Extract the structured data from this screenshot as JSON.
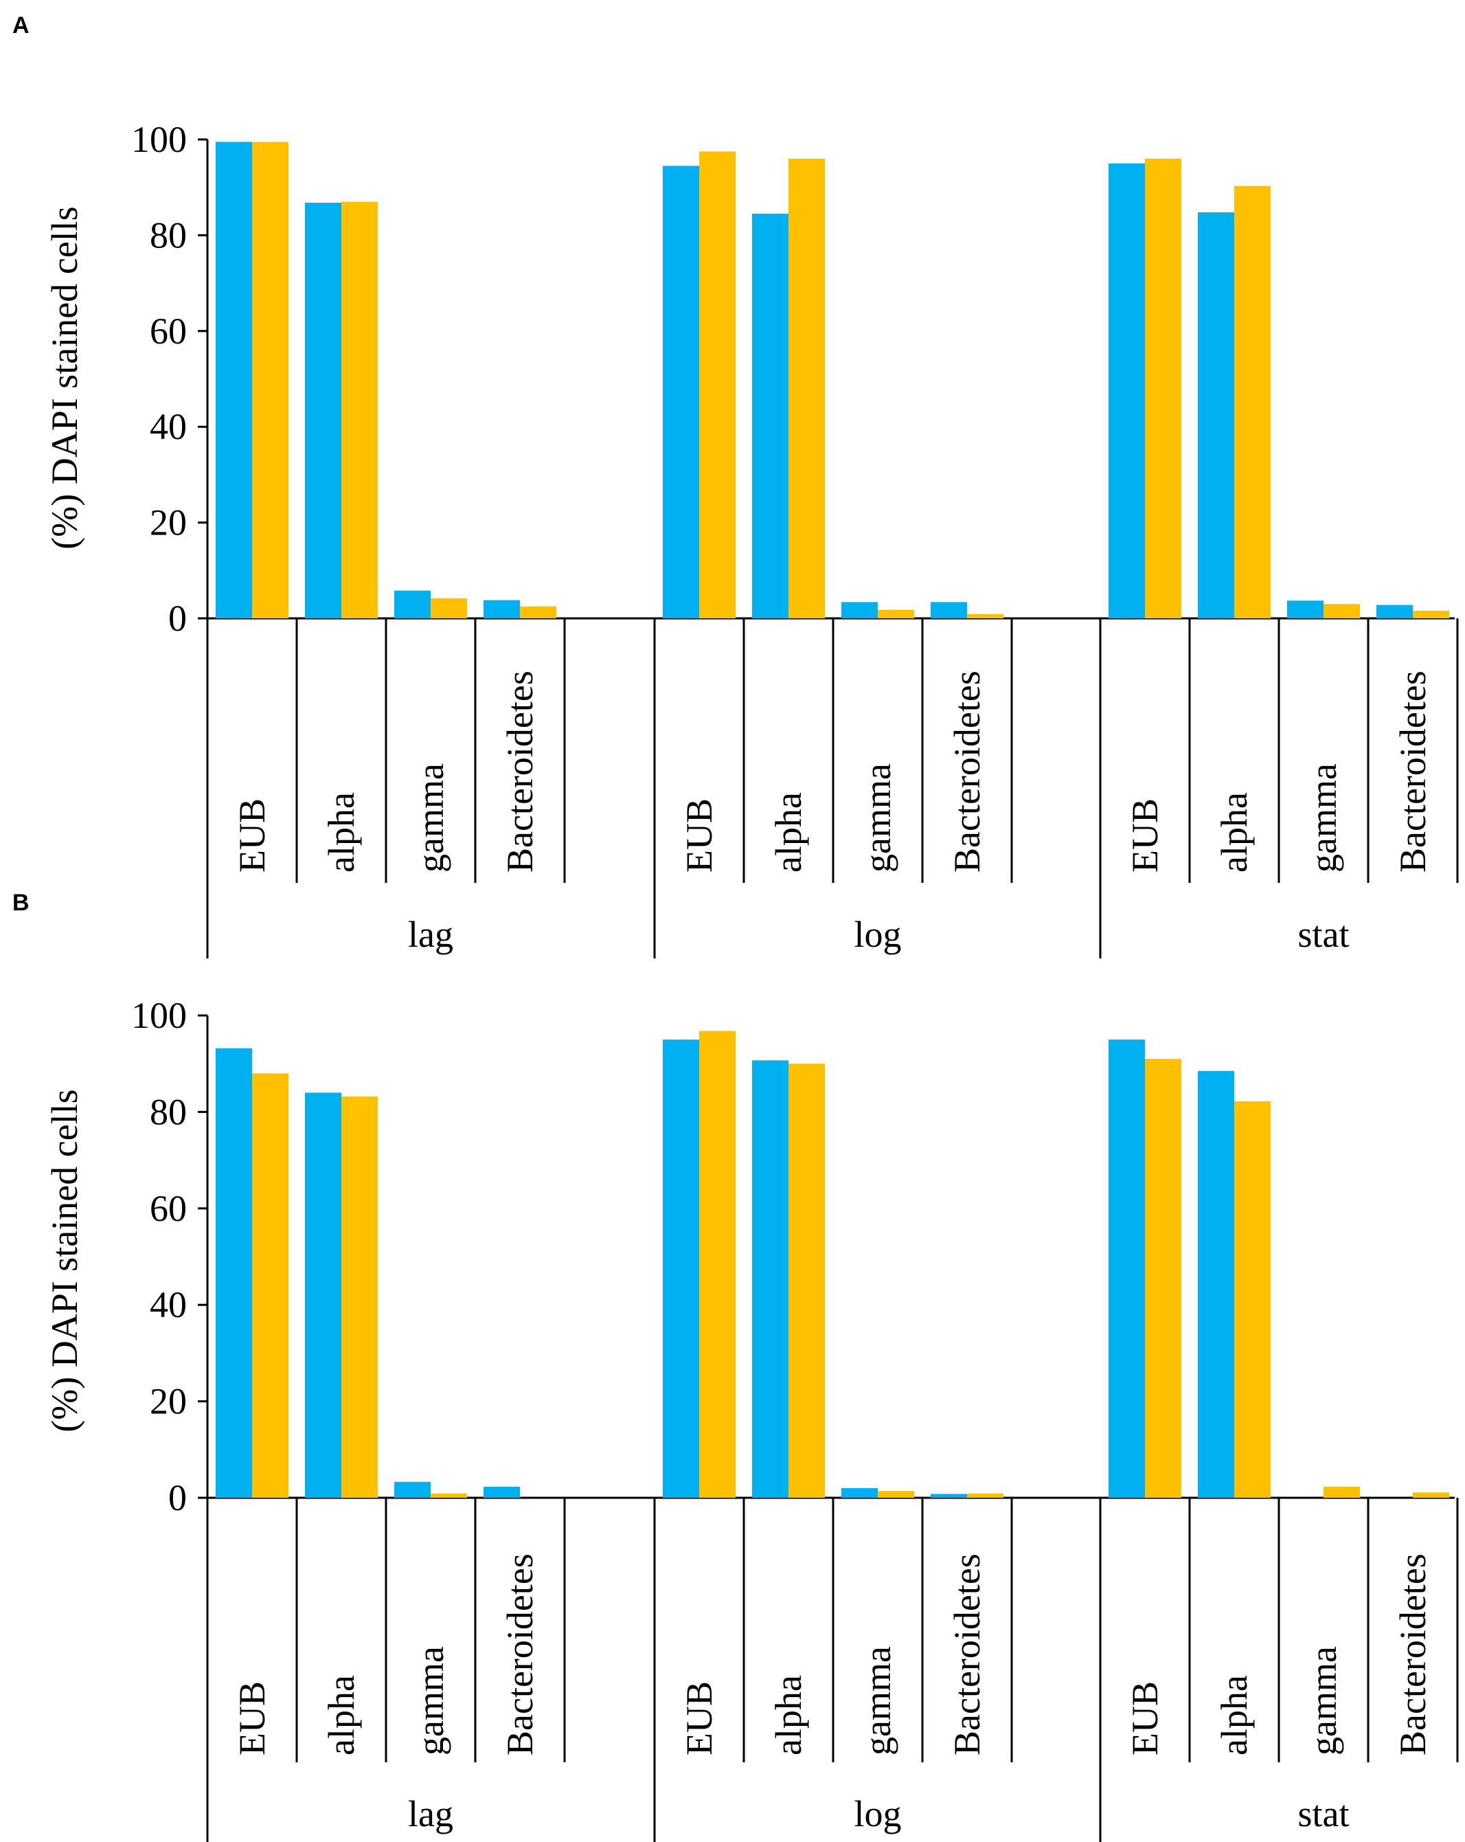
{
  "colors": {
    "series1": "#00b0f0",
    "series2": "#ffc000",
    "axis": "#000000"
  },
  "chart_data": [
    {
      "type": "bar",
      "panel": "A",
      "ylabel": "(%) DAPI stained cells",
      "ylim": [
        0,
        100
      ],
      "yticks": [
        "0",
        "20",
        "40",
        "60",
        "80",
        "100"
      ],
      "groups": [
        {
          "name": "lag",
          "categories": [
            "EUB",
            "alpha",
            "gamma",
            "Bacteroidetes"
          ],
          "series1": [
            99.5,
            86.8,
            5.8,
            3.8
          ],
          "series2": [
            99.5,
            87.0,
            4.2,
            2.5
          ]
        },
        {
          "name": "log",
          "categories": [
            "EUB",
            "alpha",
            "gamma",
            "Bacteroidetes"
          ],
          "series1": [
            94.5,
            84.5,
            3.4,
            3.4
          ],
          "series2": [
            97.5,
            96.0,
            1.8,
            0.9
          ]
        },
        {
          "name": "stat",
          "categories": [
            "EUB",
            "alpha",
            "gamma",
            "Bacteroidetes"
          ],
          "series1": [
            95.0,
            84.8,
            3.7,
            2.8
          ],
          "series2": [
            96.0,
            90.3,
            3.0,
            1.6
          ]
        }
      ]
    },
    {
      "type": "bar",
      "panel": "B",
      "ylabel": "(%) DAPI stained cells",
      "ylim": [
        0,
        100
      ],
      "yticks": [
        "0",
        "20",
        "40",
        "60",
        "80",
        "100"
      ],
      "groups": [
        {
          "name": "lag",
          "categories": [
            "EUB",
            "alpha",
            "gamma",
            "Bacteroidetes"
          ],
          "series1": [
            93.2,
            84.0,
            3.3,
            2.3
          ],
          "series2": [
            88.0,
            83.2,
            0.9,
            0.0
          ]
        },
        {
          "name": "log",
          "categories": [
            "EUB",
            "alpha",
            "gamma",
            "Bacteroidetes"
          ],
          "series1": [
            95.0,
            90.7,
            2.0,
            0.8
          ],
          "series2": [
            96.8,
            90.0,
            1.4,
            0.9
          ]
        },
        {
          "name": "stat",
          "categories": [
            "EUB",
            "alpha",
            "gamma",
            "Bacteroidetes"
          ],
          "series1": [
            95.0,
            88.5,
            0.0,
            0.0
          ],
          "series2": [
            91.0,
            82.2,
            2.3,
            1.1
          ]
        }
      ]
    }
  ]
}
